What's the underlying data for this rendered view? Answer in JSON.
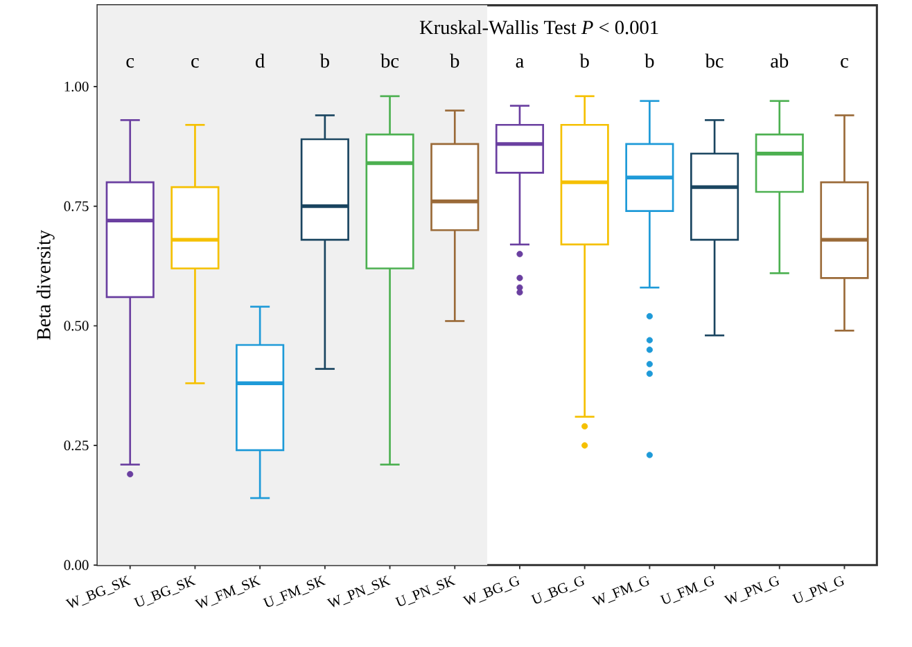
{
  "chart_data": {
    "type": "box",
    "title": "Kruskal-Wallis Test *P* < 0.001",
    "ylabel": "Beta diversity",
    "categories": [
      "W_BG_SK",
      "U_BG_SK",
      "W_FM_SK",
      "U_FM_SK",
      "W_PN_SK",
      "U_PN_SK",
      "W_BG_G",
      "U_BG_G",
      "W_FM_G",
      "U_FM_G",
      "W_PN_G",
      "U_PN_G"
    ],
    "colors": [
      "#6a3fa0",
      "#f5c000",
      "#1e9ad8",
      "#1a4560",
      "#4cb050",
      "#9a6a38",
      "#6a3fa0",
      "#f5c000",
      "#1e9ad8",
      "#1a4560",
      "#4cb050",
      "#9a6a38"
    ],
    "boxes": [
      {
        "low": 0.21,
        "q1": 0.56,
        "median": 0.72,
        "q3": 0.8,
        "high": 0.93,
        "outliers": [
          0.19
        ]
      },
      {
        "low": 0.38,
        "q1": 0.62,
        "median": 0.68,
        "q3": 0.79,
        "high": 0.92
      },
      {
        "low": 0.14,
        "q1": 0.24,
        "median": 0.38,
        "q3": 0.46,
        "high": 0.54
      },
      {
        "low": 0.41,
        "q1": 0.68,
        "median": 0.75,
        "q3": 0.89,
        "high": 0.94
      },
      {
        "low": 0.21,
        "q1": 0.62,
        "median": 0.84,
        "q3": 0.9,
        "high": 0.98
      },
      {
        "low": 0.51,
        "q1": 0.7,
        "median": 0.76,
        "q3": 0.88,
        "high": 0.95
      },
      {
        "low": 0.67,
        "q1": 0.82,
        "median": 0.88,
        "q3": 0.92,
        "high": 0.96,
        "outliers": [
          0.65,
          0.6,
          0.58,
          0.57
        ]
      },
      {
        "low": 0.31,
        "q1": 0.67,
        "median": 0.8,
        "q3": 0.92,
        "high": 0.98,
        "outliers": [
          0.29,
          0.25
        ]
      },
      {
        "low": 0.58,
        "q1": 0.74,
        "median": 0.81,
        "q3": 0.88,
        "high": 0.97,
        "outliers": [
          0.52,
          0.47,
          0.45,
          0.42,
          0.4,
          0.23
        ]
      },
      {
        "low": 0.48,
        "q1": 0.68,
        "median": 0.79,
        "q3": 0.86,
        "high": 0.93
      },
      {
        "low": 0.61,
        "q1": 0.78,
        "median": 0.86,
        "q3": 0.9,
        "high": 0.97
      },
      {
        "low": 0.49,
        "q1": 0.6,
        "median": 0.68,
        "q3": 0.8,
        "high": 0.94
      }
    ],
    "ylim": [
      0,
      1.17
    ],
    "yticks": [
      {
        "value": 0,
        "label": "0.00"
      },
      {
        "value": 0.25,
        "label": "0.25"
      },
      {
        "value": 0.5,
        "label": "0.50"
      },
      {
        "value": 0.75,
        "label": "0.75"
      },
      {
        "value": 1,
        "label": "1.00"
      }
    ],
    "annotations": [
      "c",
      "c",
      "d",
      "b",
      "bc",
      "b",
      "a",
      "b",
      "b",
      "bc",
      "ab",
      "c"
    ],
    "bands": [
      {
        "axis": "x",
        "from": "W_BG_SK",
        "to": "U_PN_SK",
        "color": "#f0f0f0"
      }
    ],
    "grid": false
  }
}
